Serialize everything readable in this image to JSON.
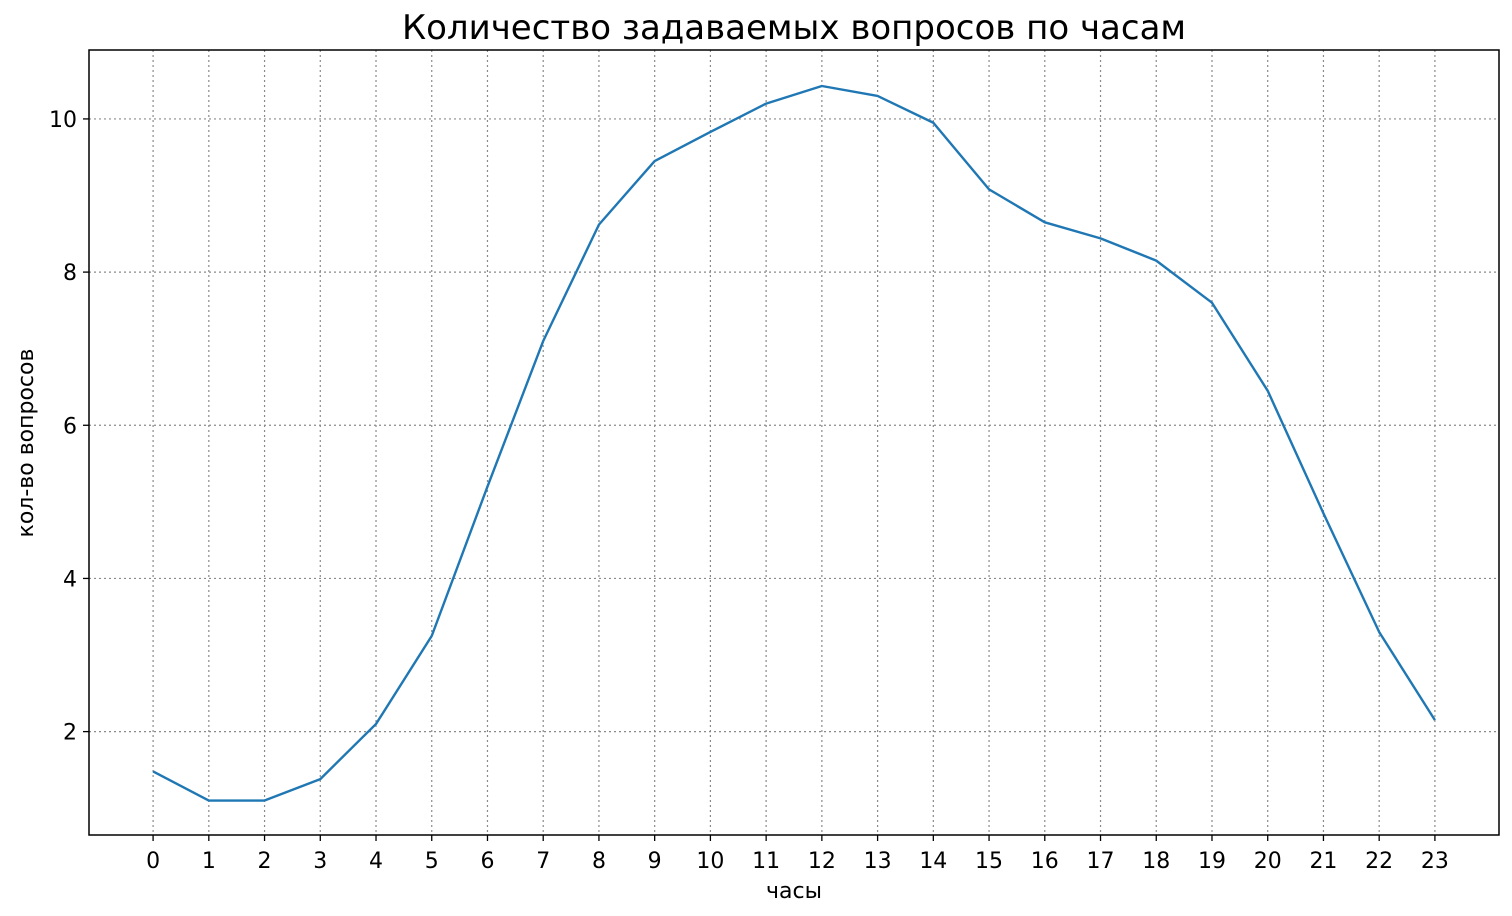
{
  "chart_data": {
    "type": "line",
    "title": "Количество задаваемых вопросов по часам",
    "xlabel": "часы",
    "ylabel": "кол-во вопросов",
    "x": [
      0,
      1,
      2,
      3,
      4,
      5,
      6,
      7,
      8,
      9,
      10,
      11,
      12,
      13,
      14,
      15,
      16,
      17,
      18,
      19,
      20,
      21,
      22,
      23
    ],
    "x_tick_labels": [
      "0",
      "1",
      "2",
      "3",
      "4",
      "5",
      "6",
      "7",
      "8",
      "9",
      "10",
      "11",
      "12",
      "13",
      "14",
      "15",
      "16",
      "17",
      "18",
      "19",
      "20",
      "21",
      "22",
      "23"
    ],
    "y_ticks": [
      2,
      4,
      6,
      8,
      10
    ],
    "y_tick_labels": [
      "2",
      "4",
      "6",
      "8",
      "10"
    ],
    "xlim": [
      -1.15,
      24.15
    ],
    "ylim": [
      0.65,
      10.9
    ],
    "grid": true,
    "series": [
      {
        "values": [
          1.48,
          1.1,
          1.1,
          1.38,
          2.1,
          3.25,
          5.2,
          7.1,
          8.62,
          9.45,
          9.83,
          10.2,
          10.43,
          10.3,
          9.95,
          9.08,
          8.65,
          8.44,
          8.15,
          7.6,
          6.45,
          4.85,
          3.3,
          2.15
        ],
        "color": "#1f77b4"
      }
    ]
  }
}
